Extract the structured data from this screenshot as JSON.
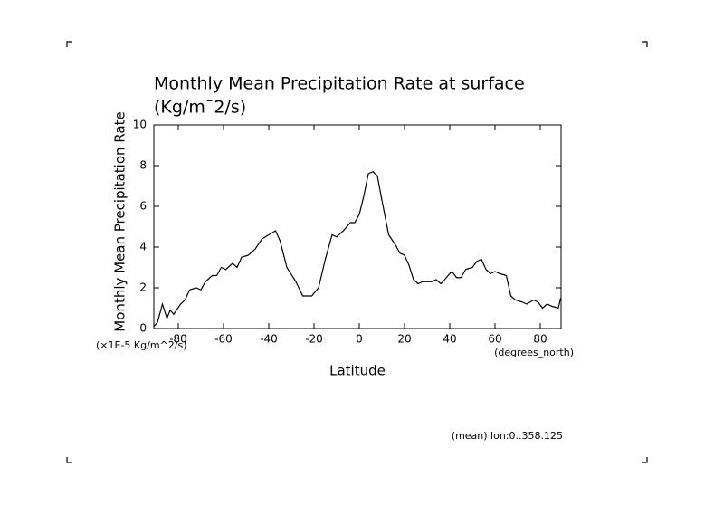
{
  "chart_data": {
    "type": "line",
    "title": "Monthly Mean Precipitation Rate at surface",
    "subtitle": "(Kg/m¯2/s)",
    "y_label": "Monthly Mean Precipitation Rate",
    "y_unit": "(×1E-5 Kg/m^2/s)",
    "x_label": "Latitude",
    "x_unit": "(degrees_north)",
    "annotation": "(mean) lon:0..358.125",
    "color": "#000000",
    "xlim": [
      -90.8,
      89.2
    ],
    "ylim": [
      0,
      10
    ],
    "xticks": [
      -80,
      -60,
      -40,
      -20,
      0,
      20,
      40,
      60,
      80
    ],
    "yticks": [
      0,
      2,
      4,
      6,
      8,
      10
    ],
    "x": [
      -90.8,
      -89.2,
      -87,
      -85,
      -83.6,
      -82,
      -79,
      -77,
      -75,
      -72,
      -70,
      -68,
      -65,
      -63,
      -61,
      -59,
      -56,
      -54,
      -52,
      -49,
      -46,
      -43,
      -40,
      -37,
      -35,
      -32,
      -28,
      -25,
      -21,
      -18,
      -15,
      -12,
      -10,
      -7,
      -4,
      -2,
      0,
      2,
      4,
      6,
      8,
      10,
      13,
      16,
      18,
      20,
      22,
      24,
      26,
      28,
      32,
      34,
      36,
      37,
      40,
      41,
      43,
      45,
      47,
      50,
      52,
      54,
      56,
      58,
      60,
      62,
      65,
      67,
      69,
      72,
      74,
      77,
      79,
      81,
      83,
      85,
      88,
      89
    ],
    "values": [
      0.1,
      0.3,
      1.2,
      0.5,
      0.9,
      0.7,
      1.2,
      1.4,
      1.9,
      2.0,
      1.9,
      2.3,
      2.6,
      2.6,
      3.0,
      2.9,
      3.2,
      3.0,
      3.5,
      3.6,
      3.9,
      4.4,
      4.6,
      4.8,
      4.3,
      3.0,
      2.3,
      1.6,
      1.6,
      2.0,
      3.4,
      4.6,
      4.5,
      4.8,
      5.2,
      5.2,
      5.6,
      6.5,
      7.6,
      7.7,
      7.5,
      6.3,
      4.6,
      4.1,
      3.7,
      3.6,
      3.1,
      2.4,
      2.2,
      2.3,
      2.3,
      2.4,
      2.2,
      2.3,
      2.7,
      2.8,
      2.5,
      2.5,
      2.9,
      3.0,
      3.3,
      3.4,
      2.9,
      2.7,
      2.8,
      2.7,
      2.6,
      1.6,
      1.4,
      1.3,
      1.2,
      1.4,
      1.3,
      1.0,
      1.2,
      1.1,
      1.0,
      1.5
    ]
  }
}
